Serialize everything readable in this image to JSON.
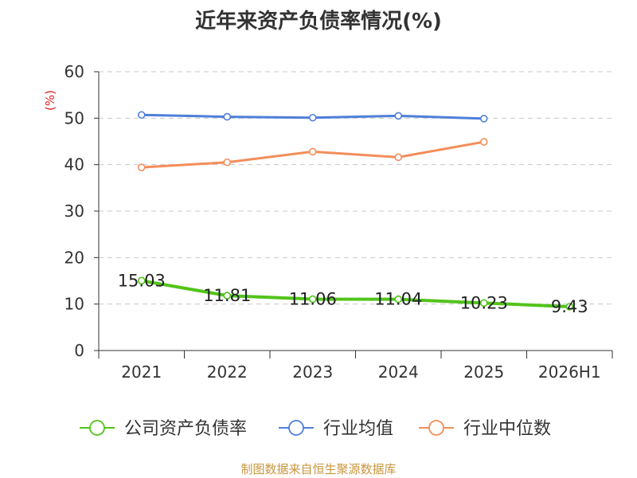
{
  "chart_data": {
    "type": "line",
    "title": "近年来资产负债率情况(%)",
    "ylabel": "(%)",
    "xlabel": "",
    "ylim": [
      0,
      60
    ],
    "yticks": [
      0,
      10,
      20,
      30,
      40,
      50,
      60
    ],
    "grid": true,
    "legend_position": "bottom",
    "categories": [
      "2021",
      "2022",
      "2023",
      "2024",
      "2025",
      "2026H1"
    ],
    "series": [
      {
        "name": "公司资产负债率",
        "color": "#52c41a",
        "values": [
          15.03,
          11.81,
          11.06,
          11.04,
          10.23,
          9.43
        ],
        "labels": [
          "15.03",
          "11.81",
          "11.06",
          "11.04",
          "10.23",
          "9.43"
        ]
      },
      {
        "name": "行业均值",
        "color": "#4f7fd9",
        "values": [
          50.7,
          50.3,
          50.1,
          50.5,
          49.9,
          null
        ]
      },
      {
        "name": "行业中位数",
        "color": "#f28e5a",
        "values": [
          39.4,
          40.5,
          42.8,
          41.6,
          44.9,
          null
        ]
      }
    ]
  },
  "footer": {
    "source": "制图数据来自恒生聚源数据库"
  }
}
